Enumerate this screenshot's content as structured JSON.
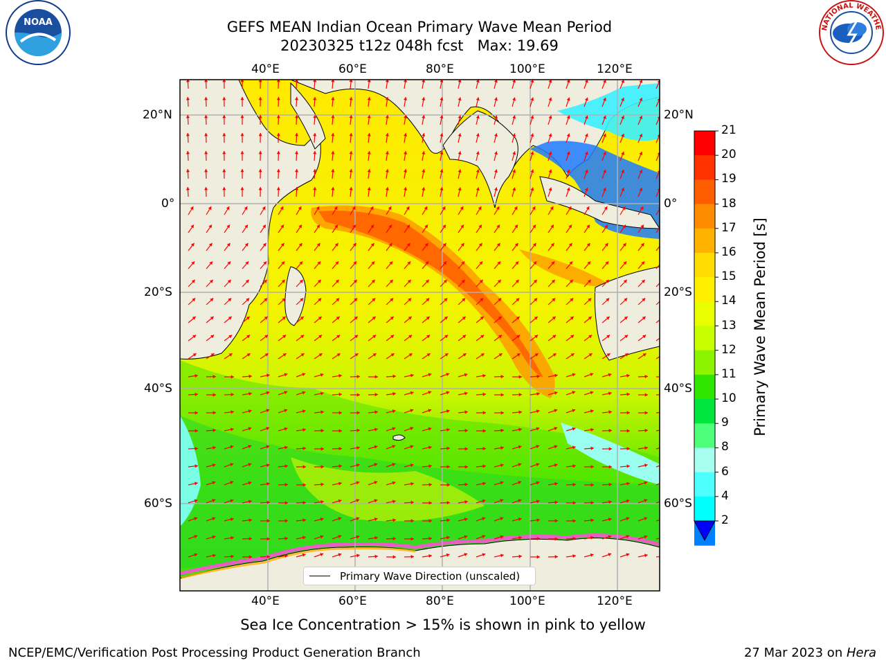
{
  "title": {
    "line1": "GEFS MEAN Indian Ocean Primary Wave Mean Period",
    "line2": "20230325 t12z 048h fcst   Max: 19.69"
  },
  "logos": {
    "left": "NOAA",
    "right": "NATIONAL WEATHER SERVICE"
  },
  "map": {
    "lon_labels": [
      "40°E",
      "60°E",
      "80°E",
      "100°E",
      "120°E"
    ],
    "lat_labels": [
      "20°N",
      "0°",
      "20°S",
      "40°S",
      "60°S"
    ],
    "legend_label": "Primary Wave Direction (unscaled)",
    "colors": {
      "land": "#efedde",
      "grid": "#b0b0b0",
      "arrow": "#ff0000"
    }
  },
  "colorbar": {
    "label": "Primary Wave Mean Period [s]",
    "ticks": [
      "21",
      "20",
      "19",
      "18",
      "17",
      "16",
      "15",
      "14",
      "13",
      "12",
      "11",
      "10",
      "9",
      "8",
      "6",
      "4",
      "2"
    ],
    "colors": [
      "#ff0000",
      "#ff3300",
      "#ff5e00",
      "#ff8c00",
      "#ffb300",
      "#ffdd00",
      "#fff000",
      "#e9ff00",
      "#c8ff00",
      "#8df400",
      "#2ee600",
      "#00e63d",
      "#4dff7a",
      "#a6ffef",
      "#4dffff",
      "#00ffff",
      "#0080ff",
      "#0000ff"
    ]
  },
  "sea_ice_note": "Sea Ice Concentration > 15% is shown in pink to yellow",
  "footer": {
    "left": "NCEP/EMC/Verification Post Processing Product Generation Branch",
    "right_date": "27 Mar 2023 on ",
    "right_host": "Hera"
  }
}
